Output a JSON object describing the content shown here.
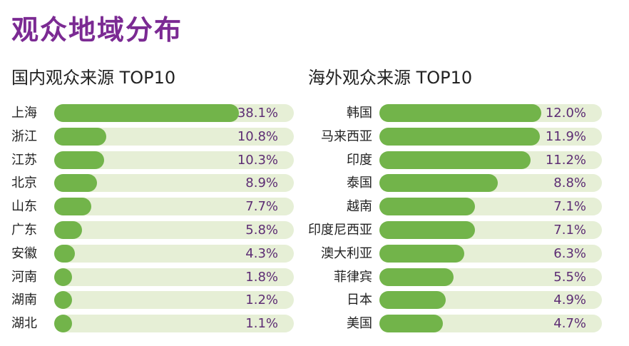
{
  "page": {
    "title": "观众地域分布"
  },
  "chart_data": [
    {
      "type": "bar",
      "orientation": "horizontal",
      "title": "国内观众来源 TOP10",
      "categories": [
        "上海",
        "浙江",
        "江苏",
        "北京",
        "山东",
        "广东",
        "安徽",
        "河南",
        "湖南",
        "湖北"
      ],
      "values": [
        38.1,
        10.8,
        10.3,
        8.9,
        7.7,
        5.8,
        4.3,
        1.8,
        1.2,
        1.1
      ],
      "value_labels": [
        "38.1%",
        "10.8%",
        "10.3%",
        "8.9%",
        "7.7%",
        "5.8%",
        "4.3%",
        "1.8%",
        "1.2%",
        "1.1%"
      ],
      "unit": "%",
      "colors": {
        "fill": "#72b44a",
        "track": "#e6efd6",
        "value_text": "#5d2d74"
      }
    },
    {
      "type": "bar",
      "orientation": "horizontal",
      "title": "海外观众来源 TOP10",
      "categories": [
        "韩国",
        "马来西亚",
        "印度",
        "泰国",
        "越南",
        "印度尼西亚",
        "澳大利亚",
        "菲律宾",
        "日本",
        "美国"
      ],
      "values": [
        12.0,
        11.9,
        11.2,
        8.8,
        7.1,
        7.1,
        6.3,
        5.5,
        4.9,
        4.7
      ],
      "value_labels": [
        "12.0%",
        "11.9%",
        "11.2%",
        "8.8%",
        "7.1%",
        "7.1%",
        "6.3%",
        "5.5%",
        "4.9%",
        "4.7%"
      ],
      "unit": "%",
      "colors": {
        "fill": "#72b44a",
        "track": "#e6efd6",
        "value_text": "#5d2d74"
      }
    }
  ]
}
